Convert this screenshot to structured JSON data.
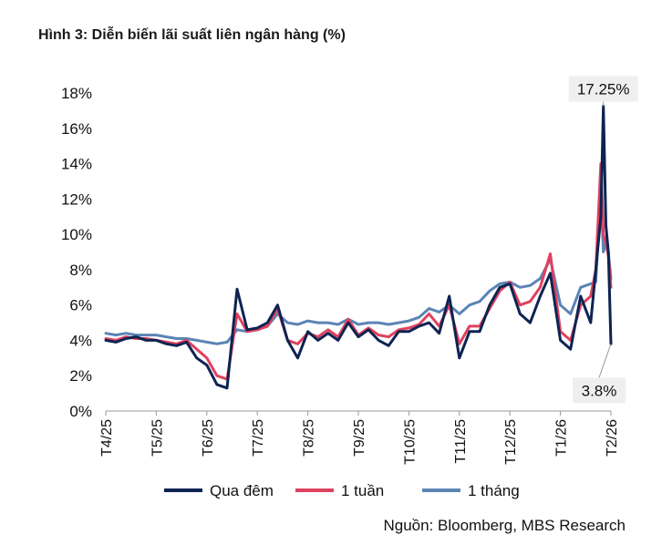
{
  "title": "Hình 3: Diễn biến lãi suất liên ngân hàng (%)",
  "source": "Nguồn: Bloomberg, MBS Research",
  "chart_data": {
    "type": "line",
    "title": "Hình 3: Diễn biến lãi suất liên ngân hàng (%)",
    "xlabel": "",
    "ylabel": "",
    "ylim": [
      0,
      18
    ],
    "y_ticks": [
      "0%",
      "2%",
      "4%",
      "6%",
      "8%",
      "10%",
      "12%",
      "14%",
      "16%",
      "18%"
    ],
    "x_ticks": [
      "T4/25",
      "T5/25",
      "T6/25",
      "T7/25",
      "T8/25",
      "T9/25",
      "T10/25",
      "T11/25",
      "T12/25",
      "T1/26",
      "T2/26"
    ],
    "grid": false,
    "legend_position": "bottom",
    "annotations": [
      {
        "text": "17.25%",
        "series": "Qua đêm",
        "x": 9.85,
        "y": 17.25
      },
      {
        "text": "3.8%",
        "series": "Qua đêm",
        "x": 10.0,
        "y": 3.8
      }
    ],
    "x": [
      0.0,
      0.2,
      0.4,
      0.6,
      0.8,
      1.0,
      1.2,
      1.4,
      1.6,
      1.8,
      2.0,
      2.2,
      2.4,
      2.6,
      2.8,
      3.0,
      3.2,
      3.4,
      3.6,
      3.8,
      4.0,
      4.2,
      4.4,
      4.6,
      4.8,
      5.0,
      5.2,
      5.4,
      5.6,
      5.8,
      6.0,
      6.2,
      6.4,
      6.6,
      6.8,
      7.0,
      7.2,
      7.4,
      7.6,
      7.8,
      8.0,
      8.2,
      8.4,
      8.6,
      8.8,
      9.0,
      9.2,
      9.4,
      9.6,
      9.7,
      9.8,
      9.85,
      9.9,
      9.95,
      10.0
    ],
    "series": [
      {
        "name": "Qua đêm",
        "color": "#0d2452",
        "values": [
          4.0,
          3.9,
          4.1,
          4.2,
          4.0,
          4.0,
          3.8,
          3.7,
          3.9,
          3.0,
          2.6,
          1.5,
          1.3,
          6.9,
          4.6,
          4.7,
          5.0,
          6.0,
          4.0,
          3.0,
          4.5,
          4.0,
          4.4,
          4.0,
          5.0,
          4.2,
          4.6,
          4.0,
          3.7,
          4.5,
          4.5,
          4.8,
          5.0,
          4.4,
          6.5,
          3.0,
          4.5,
          4.5,
          6.0,
          7.0,
          7.2,
          5.5,
          5.0,
          6.5,
          7.8,
          4.0,
          3.5,
          6.5,
          5.0,
          8.0,
          11.0,
          17.25,
          10.5,
          9.0,
          3.8
        ]
      },
      {
        "name": "1 tuần",
        "color": "#e0415f",
        "values": [
          4.1,
          4.0,
          4.2,
          4.1,
          4.1,
          4.0,
          3.9,
          3.8,
          4.0,
          3.5,
          3.0,
          2.0,
          1.8,
          5.5,
          4.5,
          4.6,
          4.8,
          5.8,
          4.0,
          3.8,
          4.4,
          4.2,
          4.6,
          4.2,
          5.2,
          4.3,
          4.7,
          4.3,
          4.2,
          4.6,
          4.7,
          4.9,
          5.5,
          4.8,
          6.0,
          3.8,
          4.8,
          4.8,
          5.8,
          6.8,
          7.3,
          6.0,
          6.2,
          7.0,
          8.9,
          4.5,
          4.0,
          6.0,
          6.5,
          8.0,
          14.0,
          10.0,
          9.5,
          8.8,
          7.0
        ]
      },
      {
        "name": "1 tháng",
        "color": "#5b84b5",
        "values": [
          4.4,
          4.3,
          4.4,
          4.3,
          4.3,
          4.3,
          4.2,
          4.1,
          4.1,
          4.0,
          3.9,
          3.8,
          3.9,
          4.6,
          4.5,
          4.6,
          4.8,
          5.5,
          5.0,
          4.9,
          5.1,
          5.0,
          5.0,
          4.9,
          5.2,
          4.9,
          5.0,
          5.0,
          4.9,
          5.0,
          5.1,
          5.3,
          5.8,
          5.6,
          6.0,
          5.5,
          6.0,
          6.2,
          6.8,
          7.2,
          7.3,
          7.0,
          7.1,
          7.5,
          8.6,
          6.0,
          5.5,
          7.0,
          7.2,
          7.3,
          12.5,
          9.0,
          9.5,
          9.0,
          7.5
        ]
      }
    ]
  }
}
